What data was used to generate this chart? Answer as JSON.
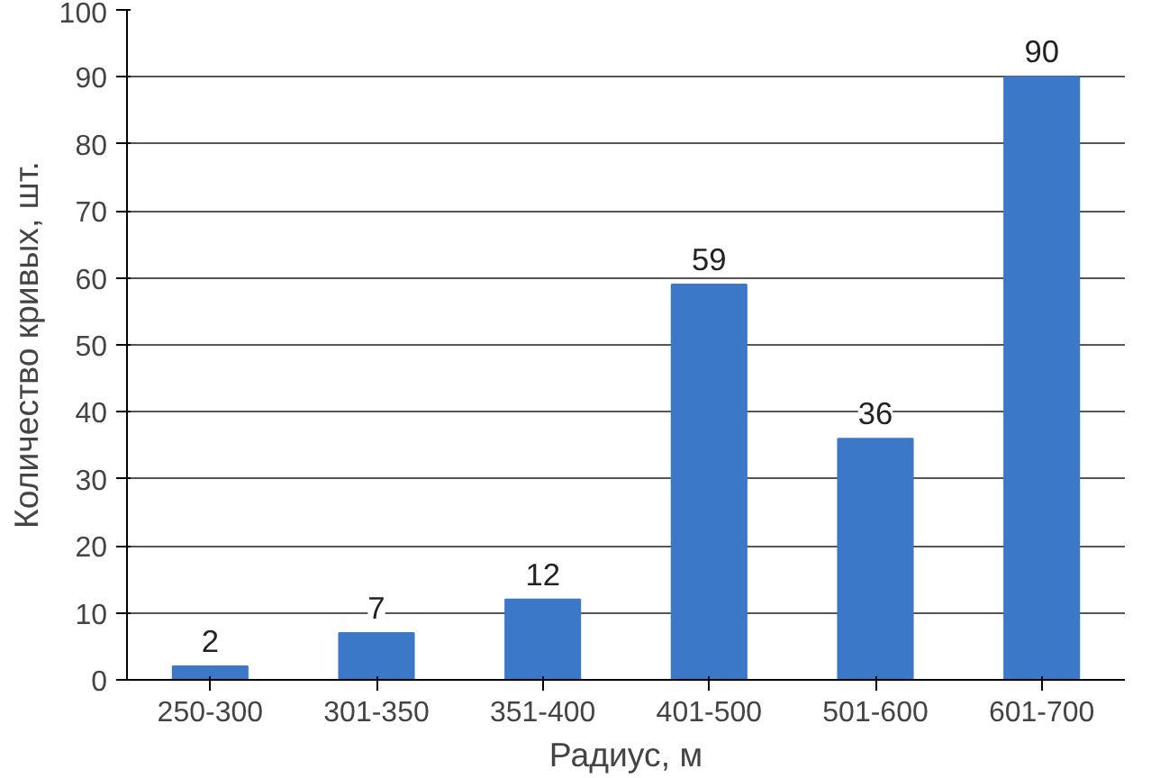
{
  "chart_data": {
    "type": "bar",
    "xlabel": "Радиус, м",
    "ylabel": "Количество кривых, шт.",
    "categories": [
      "250-300",
      "301-350",
      "351-400",
      "401-500",
      "501-600",
      "601-700"
    ],
    "values": [
      2,
      7,
      12,
      59,
      36,
      90
    ],
    "color": "#3b78c8",
    "ylim": [
      0,
      100
    ],
    "yticks": [
      0,
      10,
      20,
      30,
      40,
      50,
      60,
      70,
      80,
      90,
      100
    ],
    "grid": "y",
    "data_labels": true
  }
}
